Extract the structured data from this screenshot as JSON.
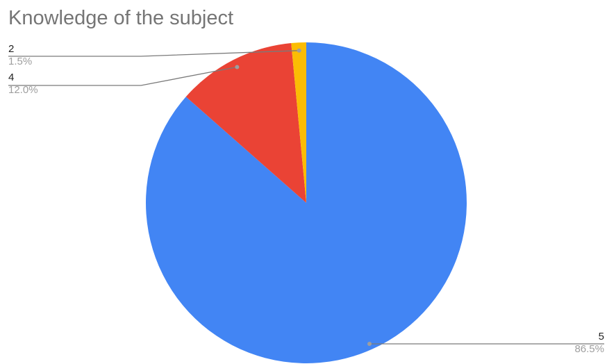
{
  "chart_data": {
    "type": "pie",
    "title": "Knowledge of the subject",
    "slices": [
      {
        "label": "5",
        "value": 86.5,
        "percent_label": "86.5%",
        "color": "#4285f4"
      },
      {
        "label": "4",
        "value": 12.0,
        "percent_label": "12.0%",
        "color": "#ea4335"
      },
      {
        "label": "2",
        "value": 1.5,
        "percent_label": "1.5%",
        "color": "#fbbc04"
      }
    ],
    "start": "12 o'clock",
    "direction": "clockwise",
    "legend": "none",
    "data_labels": "outside with leader lines"
  }
}
